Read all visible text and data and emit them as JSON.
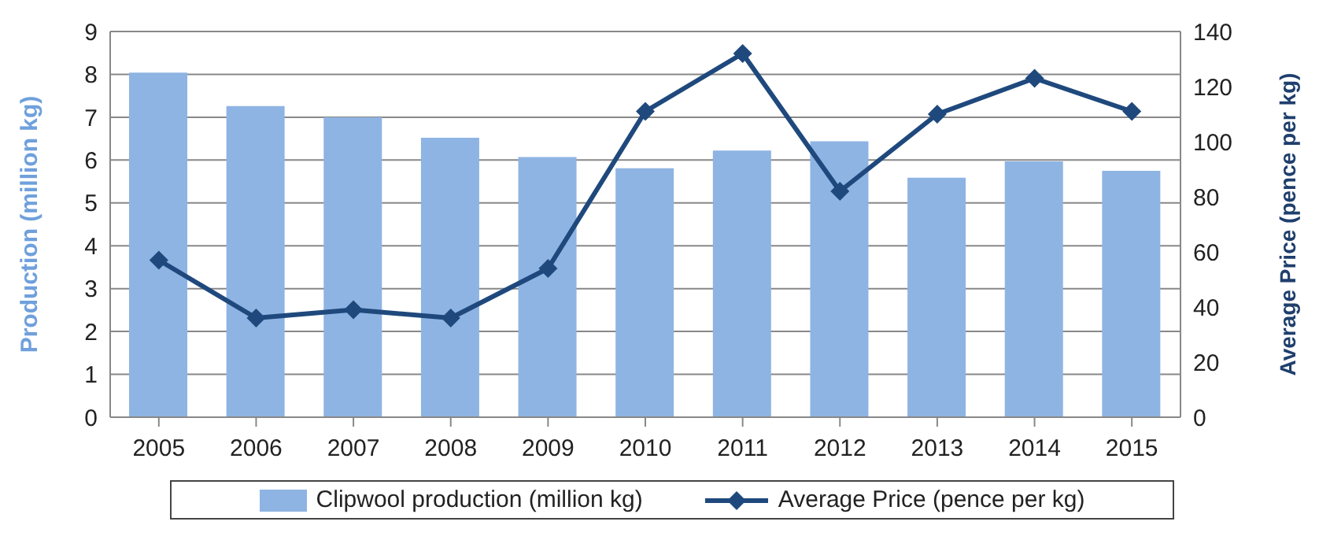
{
  "chart_data": {
    "type": "bar",
    "categories": [
      "2005",
      "2006",
      "2007",
      "2008",
      "2009",
      "2010",
      "2011",
      "2012",
      "2013",
      "2014",
      "2015"
    ],
    "ylabel": "Production (million kg)",
    "y2label": "Average Price (pence per kg)",
    "series": [
      {
        "name": "Clipwool production (million kg)",
        "color": "#8eb4e3",
        "values": [
          8.04,
          7.26,
          7.0,
          6.52,
          6.07,
          5.81,
          6.22,
          6.44,
          5.59,
          5.97,
          5.75
        ]
      },
      {
        "name": "Average Price (pence per kg)",
        "type": "line",
        "axis": "y2",
        "color": "#1f497d",
        "marker": "diamond",
        "values": [
          57,
          36,
          39,
          36,
          54,
          111,
          132,
          82,
          110,
          123,
          111
        ]
      }
    ],
    "ylim": [
      0,
      9
    ],
    "yticks": [
      0,
      1,
      2,
      3,
      4,
      5,
      6,
      7,
      8,
      9
    ],
    "y2lim": [
      0,
      140
    ],
    "y2ticks": [
      0,
      20,
      40,
      60,
      80,
      100,
      120,
      140
    ],
    "grid": "y",
    "legend": "bottom"
  }
}
